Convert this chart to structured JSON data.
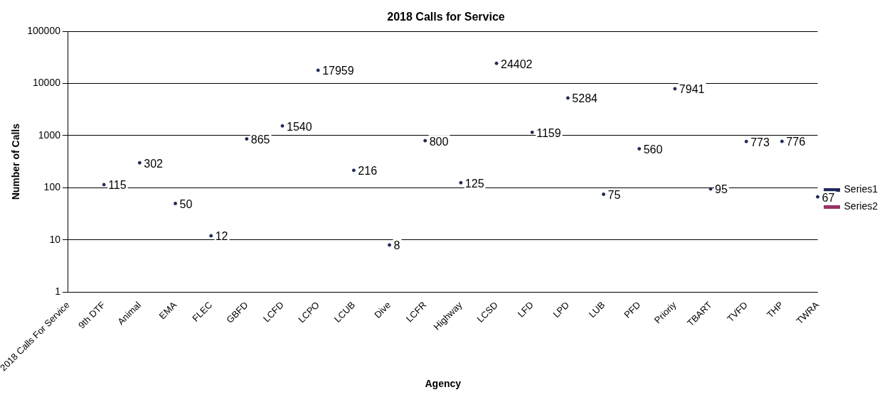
{
  "chart_data": {
    "type": "scatter",
    "title": "2018 Calls for Service",
    "xlabel": "Agency",
    "ylabel": "Number of Calls",
    "categories": [
      "2018 Calls For Service",
      "9th DTF",
      "Animal",
      "EMA",
      "FLEC",
      "GBFD",
      "LCFD",
      "LCPO",
      "LCUB",
      "Dive",
      "LCFR",
      "Highway",
      "LCSD",
      "LFD",
      "LPD",
      "LUB",
      "PFD",
      "Prioriy",
      "TBART",
      "TVFD",
      "THP",
      "TWRA"
    ],
    "series": [
      {
        "name": "Series1",
        "color": "#1f2a5a",
        "values": [
          null,
          115,
          302,
          50,
          12,
          865,
          1540,
          17959,
          216,
          8,
          800,
          125,
          24402,
          1159,
          5284,
          75,
          560,
          7941,
          95,
          773,
          776,
          67
        ]
      },
      {
        "name": "Series2",
        "color": "#993366",
        "values": [
          null,
          null,
          null,
          null,
          null,
          null,
          null,
          null,
          null,
          null,
          null,
          null,
          null,
          null,
          null,
          null,
          null,
          null,
          null,
          null,
          null,
          null
        ]
      }
    ],
    "log": true,
    "ylim": [
      1,
      100000
    ],
    "yticks": [
      1,
      10,
      100,
      1000,
      10000,
      100000
    ],
    "grid": "y",
    "legend": "right",
    "marker": "circle",
    "data_labels": true
  }
}
